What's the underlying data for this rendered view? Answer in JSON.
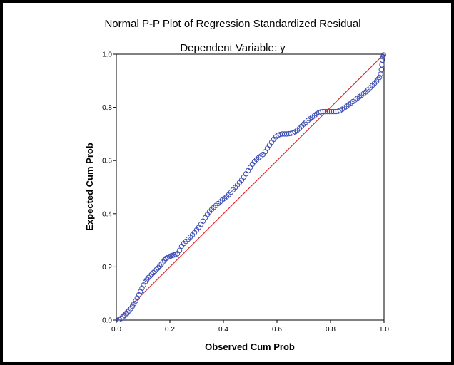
{
  "chart_data": {
    "type": "scatter",
    "title": "Normal P-P Plot of Regression Standardized Residual",
    "subtitle": "Dependent Variable: y",
    "xlabel": "Observed Cum Prob",
    "ylabel": "Expected Cum Prob",
    "xlim": [
      0.0,
      1.0
    ],
    "ylim": [
      0.0,
      1.0
    ],
    "x_ticks": [
      "0.0",
      "0.2",
      "0.4",
      "0.6",
      "0.8",
      "1.0"
    ],
    "y_ticks": [
      "0.0",
      "0.2",
      "0.4",
      "0.6",
      "0.8",
      "1.0"
    ],
    "grid": false,
    "reference_line": {
      "from": [
        0.0,
        0.0
      ],
      "to": [
        1.0,
        1.0
      ],
      "color": "#e0282a"
    },
    "marker_color": "#3f4fb5",
    "points": [
      [
        0.01,
        0.002
      ],
      [
        0.018,
        0.006
      ],
      [
        0.025,
        0.012
      ],
      [
        0.032,
        0.018
      ],
      [
        0.04,
        0.025
      ],
      [
        0.047,
        0.034
      ],
      [
        0.054,
        0.043
      ],
      [
        0.06,
        0.052
      ],
      [
        0.066,
        0.062
      ],
      [
        0.072,
        0.072
      ],
      [
        0.078,
        0.083
      ],
      [
        0.084,
        0.095
      ],
      [
        0.09,
        0.107
      ],
      [
        0.096,
        0.12
      ],
      [
        0.102,
        0.132
      ],
      [
        0.108,
        0.143
      ],
      [
        0.114,
        0.152
      ],
      [
        0.12,
        0.16
      ],
      [
        0.126,
        0.166
      ],
      [
        0.132,
        0.172
      ],
      [
        0.138,
        0.178
      ],
      [
        0.144,
        0.184
      ],
      [
        0.15,
        0.19
      ],
      [
        0.156,
        0.196
      ],
      [
        0.162,
        0.203
      ],
      [
        0.168,
        0.21
      ],
      [
        0.174,
        0.218
      ],
      [
        0.18,
        0.226
      ],
      [
        0.186,
        0.232
      ],
      [
        0.192,
        0.236
      ],
      [
        0.198,
        0.239
      ],
      [
        0.204,
        0.241
      ],
      [
        0.21,
        0.243
      ],
      [
        0.216,
        0.245
      ],
      [
        0.222,
        0.247
      ],
      [
        0.228,
        0.25
      ],
      [
        0.236,
        0.262
      ],
      [
        0.244,
        0.278
      ],
      [
        0.252,
        0.288
      ],
      [
        0.26,
        0.296
      ],
      [
        0.268,
        0.304
      ],
      [
        0.276,
        0.312
      ],
      [
        0.284,
        0.32
      ],
      [
        0.292,
        0.329
      ],
      [
        0.3,
        0.339
      ],
      [
        0.308,
        0.349
      ],
      [
        0.316,
        0.36
      ],
      [
        0.324,
        0.372
      ],
      [
        0.332,
        0.385
      ],
      [
        0.34,
        0.397
      ],
      [
        0.348,
        0.407
      ],
      [
        0.356,
        0.416
      ],
      [
        0.364,
        0.424
      ],
      [
        0.372,
        0.431
      ],
      [
        0.38,
        0.438
      ],
      [
        0.388,
        0.445
      ],
      [
        0.396,
        0.452
      ],
      [
        0.404,
        0.458
      ],
      [
        0.412,
        0.464
      ],
      [
        0.42,
        0.472
      ],
      [
        0.428,
        0.481
      ],
      [
        0.436,
        0.49
      ],
      [
        0.444,
        0.499
      ],
      [
        0.452,
        0.508
      ],
      [
        0.46,
        0.517
      ],
      [
        0.468,
        0.527
      ],
      [
        0.476,
        0.538
      ],
      [
        0.484,
        0.55
      ],
      [
        0.492,
        0.562
      ],
      [
        0.5,
        0.574
      ],
      [
        0.508,
        0.586
      ],
      [
        0.516,
        0.596
      ],
      [
        0.524,
        0.604
      ],
      [
        0.532,
        0.611
      ],
      [
        0.54,
        0.617
      ],
      [
        0.548,
        0.623
      ],
      [
        0.556,
        0.633
      ],
      [
        0.564,
        0.646
      ],
      [
        0.572,
        0.658
      ],
      [
        0.58,
        0.669
      ],
      [
        0.588,
        0.68
      ],
      [
        0.596,
        0.689
      ],
      [
        0.604,
        0.695
      ],
      [
        0.612,
        0.698
      ],
      [
        0.62,
        0.7
      ],
      [
        0.628,
        0.7
      ],
      [
        0.636,
        0.7
      ],
      [
        0.644,
        0.701
      ],
      [
        0.652,
        0.702
      ],
      [
        0.66,
        0.704
      ],
      [
        0.668,
        0.708
      ],
      [
        0.676,
        0.714
      ],
      [
        0.684,
        0.721
      ],
      [
        0.692,
        0.729
      ],
      [
        0.7,
        0.737
      ],
      [
        0.708,
        0.744
      ],
      [
        0.716,
        0.751
      ],
      [
        0.724,
        0.757
      ],
      [
        0.732,
        0.763
      ],
      [
        0.74,
        0.769
      ],
      [
        0.748,
        0.775
      ],
      [
        0.756,
        0.78
      ],
      [
        0.764,
        0.783
      ],
      [
        0.772,
        0.784
      ],
      [
        0.78,
        0.784
      ],
      [
        0.788,
        0.784
      ],
      [
        0.796,
        0.784
      ],
      [
        0.804,
        0.784
      ],
      [
        0.812,
        0.784
      ],
      [
        0.82,
        0.784
      ],
      [
        0.828,
        0.785
      ],
      [
        0.836,
        0.788
      ],
      [
        0.844,
        0.793
      ],
      [
        0.852,
        0.798
      ],
      [
        0.86,
        0.804
      ],
      [
        0.868,
        0.81
      ],
      [
        0.876,
        0.816
      ],
      [
        0.884,
        0.822
      ],
      [
        0.892,
        0.828
      ],
      [
        0.9,
        0.834
      ],
      [
        0.908,
        0.84
      ],
      [
        0.916,
        0.846
      ],
      [
        0.924,
        0.852
      ],
      [
        0.932,
        0.858
      ],
      [
        0.94,
        0.866
      ],
      [
        0.948,
        0.874
      ],
      [
        0.956,
        0.882
      ],
      [
        0.964,
        0.89
      ],
      [
        0.972,
        0.898
      ],
      [
        0.978,
        0.906
      ],
      [
        0.983,
        0.913
      ],
      [
        0.987,
        0.925
      ],
      [
        0.99,
        0.942
      ],
      [
        0.992,
        0.96
      ],
      [
        0.994,
        0.978
      ],
      [
        0.996,
        0.99
      ],
      [
        0.998,
        0.997
      ]
    ]
  }
}
